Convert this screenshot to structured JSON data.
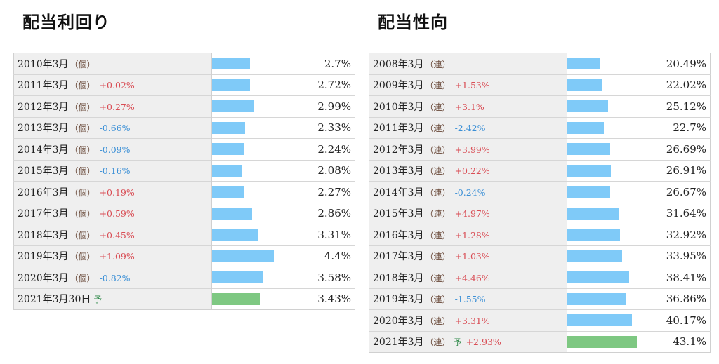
{
  "left": {
    "title": "配当利回り",
    "bar_max": 5.5,
    "rows": [
      {
        "year": "2010年3月",
        "tag": "（個）",
        "change": "",
        "dir": "",
        "forecast": "",
        "value": "2.7%",
        "v": 2.7
      },
      {
        "year": "2011年3月",
        "tag": "（個）",
        "change": "+0.02%",
        "dir": "up",
        "forecast": "",
        "value": "2.72%",
        "v": 2.72
      },
      {
        "year": "2012年3月",
        "tag": "（個）",
        "change": "+0.27%",
        "dir": "up",
        "forecast": "",
        "value": "2.99%",
        "v": 2.99
      },
      {
        "year": "2013年3月",
        "tag": "（個）",
        "change": "-0.66%",
        "dir": "down",
        "forecast": "",
        "value": "2.33%",
        "v": 2.33
      },
      {
        "year": "2014年3月",
        "tag": "（個）",
        "change": "-0.09%",
        "dir": "down",
        "forecast": "",
        "value": "2.24%",
        "v": 2.24
      },
      {
        "year": "2015年3月",
        "tag": "（個）",
        "change": "-0.16%",
        "dir": "down",
        "forecast": "",
        "value": "2.08%",
        "v": 2.08
      },
      {
        "year": "2016年3月",
        "tag": "（個）",
        "change": "+0.19%",
        "dir": "up",
        "forecast": "",
        "value": "2.27%",
        "v": 2.27
      },
      {
        "year": "2017年3月",
        "tag": "（個）",
        "change": "+0.59%",
        "dir": "up",
        "forecast": "",
        "value": "2.86%",
        "v": 2.86
      },
      {
        "year": "2018年3月",
        "tag": "（個）",
        "change": "+0.45%",
        "dir": "up",
        "forecast": "",
        "value": "3.31%",
        "v": 3.31
      },
      {
        "year": "2019年3月",
        "tag": "（個）",
        "change": "+1.09%",
        "dir": "up",
        "forecast": "",
        "value": "4.4%",
        "v": 4.4
      },
      {
        "year": "2020年3月",
        "tag": "（個）",
        "change": "-0.82%",
        "dir": "down",
        "forecast": "",
        "value": "3.58%",
        "v": 3.58
      },
      {
        "year": "2021年3月30日",
        "tag": "",
        "change": "",
        "dir": "",
        "forecast": "予",
        "value": "3.43%",
        "v": 3.43
      }
    ]
  },
  "right": {
    "title": "配当性向",
    "bar_max": 48,
    "rows": [
      {
        "year": "2008年3月",
        "tag": "（連）",
        "change": "",
        "dir": "",
        "forecast": "",
        "value": "20.49%",
        "v": 20.49
      },
      {
        "year": "2009年3月",
        "tag": "（連）",
        "change": "+1.53%",
        "dir": "up",
        "forecast": "",
        "value": "22.02%",
        "v": 22.02
      },
      {
        "year": "2010年3月",
        "tag": "（連）",
        "change": "+3.1%",
        "dir": "up",
        "forecast": "",
        "value": "25.12%",
        "v": 25.12
      },
      {
        "year": "2011年3月",
        "tag": "（連）",
        "change": "-2.42%",
        "dir": "down",
        "forecast": "",
        "value": "22.7%",
        "v": 22.7
      },
      {
        "year": "2012年3月",
        "tag": "（連）",
        "change": "+3.99%",
        "dir": "up",
        "forecast": "",
        "value": "26.69%",
        "v": 26.69
      },
      {
        "year": "2013年3月",
        "tag": "（連）",
        "change": "+0.22%",
        "dir": "up",
        "forecast": "",
        "value": "26.91%",
        "v": 26.91
      },
      {
        "year": "2014年3月",
        "tag": "（連）",
        "change": "-0.24%",
        "dir": "down",
        "forecast": "",
        "value": "26.67%",
        "v": 26.67
      },
      {
        "year": "2015年3月",
        "tag": "（連）",
        "change": "+4.97%",
        "dir": "up",
        "forecast": "",
        "value": "31.64%",
        "v": 31.64
      },
      {
        "year": "2016年3月",
        "tag": "（連）",
        "change": "+1.28%",
        "dir": "up",
        "forecast": "",
        "value": "32.92%",
        "v": 32.92
      },
      {
        "year": "2017年3月",
        "tag": "（連）",
        "change": "+1.03%",
        "dir": "up",
        "forecast": "",
        "value": "33.95%",
        "v": 33.95
      },
      {
        "year": "2018年3月",
        "tag": "（連）",
        "change": "+4.46%",
        "dir": "up",
        "forecast": "",
        "value": "38.41%",
        "v": 38.41
      },
      {
        "year": "2019年3月",
        "tag": "（連）",
        "change": "-1.55%",
        "dir": "down",
        "forecast": "",
        "value": "36.86%",
        "v": 36.86
      },
      {
        "year": "2020年3月",
        "tag": "（連）",
        "change": "+3.31%",
        "dir": "up",
        "forecast": "",
        "value": "40.17%",
        "v": 40.17
      },
      {
        "year": "2021年3月",
        "tag": "（連）",
        "change": "+2.93%",
        "dir": "up",
        "forecast": "予",
        "value": "43.1%",
        "v": 43.1
      }
    ]
  },
  "colors": {
    "bar_actual": "#7fcaf8",
    "bar_forecast": "#7ec882",
    "increase": "#d94d55",
    "decrease": "#3a8fd6",
    "label_bg": "#efefef"
  }
}
